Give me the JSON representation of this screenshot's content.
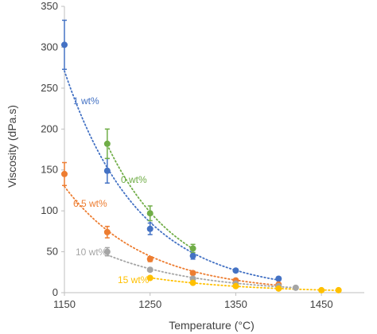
{
  "chart_data": {
    "type": "scatter",
    "title": "",
    "xlabel": "Temperature (°C)",
    "ylabel": "Viscosity (dPa.s)",
    "xlim": [
      1150,
      1500
    ],
    "ylim": [
      0,
      350
    ],
    "x_ticks": [
      "1150",
      "1250",
      "1350",
      "1450"
    ],
    "y_ticks": [
      "0",
      "50",
      "100",
      "150",
      "200",
      "250",
      "300",
      "350"
    ],
    "grid": false,
    "legend": "none",
    "trendline": "exponential, dotted",
    "series": [
      {
        "name": "1 wt%",
        "color": "#4472c4",
        "points": [
          {
            "x": 1150,
            "y": 303,
            "err": 30
          },
          {
            "x": 1200,
            "y": 149,
            "err": 15
          },
          {
            "x": 1250,
            "y": 78,
            "err": 7
          },
          {
            "x": 1300,
            "y": 45,
            "err": 4
          },
          {
            "x": 1350,
            "y": 27,
            "err": 2
          },
          {
            "x": 1400,
            "y": 17,
            "err": 2
          }
        ]
      },
      {
        "name": "0 wt%",
        "color": "#70ad47",
        "points": [
          {
            "x": 1200,
            "y": 182,
            "err": 18
          },
          {
            "x": 1250,
            "y": 97,
            "err": 9
          },
          {
            "x": 1300,
            "y": 54,
            "err": 5
          }
        ]
      },
      {
        "name": "6.5 wt%",
        "color": "#ed7d31",
        "points": [
          {
            "x": 1150,
            "y": 145,
            "err": 14
          },
          {
            "x": 1200,
            "y": 74,
            "err": 7
          },
          {
            "x": 1250,
            "y": 41,
            "err": 3
          },
          {
            "x": 1300,
            "y": 24,
            "err": 2
          },
          {
            "x": 1350,
            "y": 15,
            "err": 1
          },
          {
            "x": 1400,
            "y": 10,
            "err": 1
          }
        ]
      },
      {
        "name": "10 wt%",
        "color": "#a5a5a5",
        "points": [
          {
            "x": 1200,
            "y": 50,
            "err": 5
          },
          {
            "x": 1250,
            "y": 28,
            "err": 2
          },
          {
            "x": 1300,
            "y": 17,
            "err": 1
          },
          {
            "x": 1350,
            "y": 11,
            "err": 1
          },
          {
            "x": 1400,
            "y": 8,
            "err": 1
          },
          {
            "x": 1420,
            "y": 6,
            "err": 0.5
          }
        ]
      },
      {
        "name": "15 wt%",
        "color": "#ffc000",
        "points": [
          {
            "x": 1250,
            "y": 18,
            "err": 1
          },
          {
            "x": 1300,
            "y": 12,
            "err": 1
          },
          {
            "x": 1350,
            "y": 8,
            "err": 1
          },
          {
            "x": 1400,
            "y": 5,
            "err": 0.5
          },
          {
            "x": 1450,
            "y": 3,
            "err": 0.3
          },
          {
            "x": 1470,
            "y": 3,
            "err": 0.3
          }
        ]
      }
    ]
  }
}
